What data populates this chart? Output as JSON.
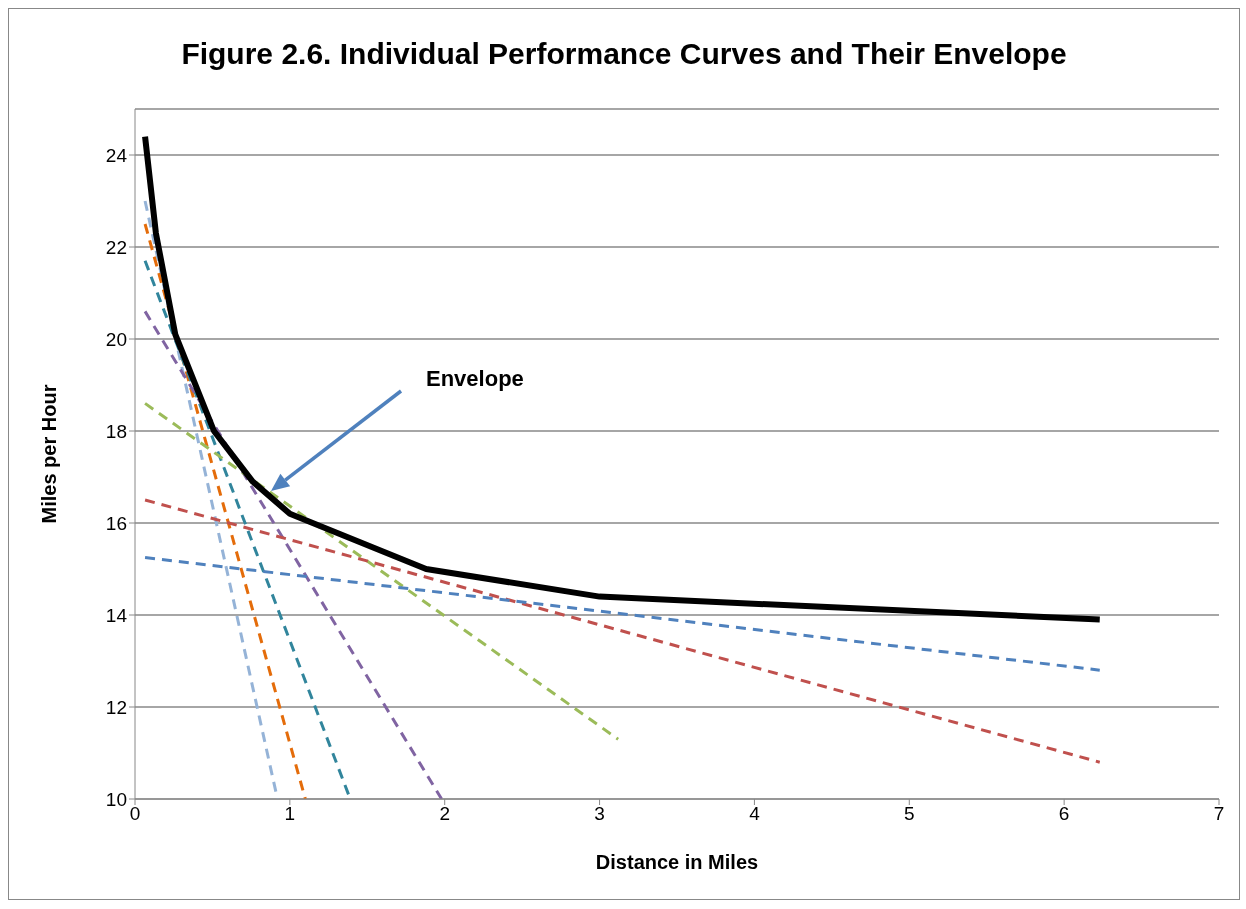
{
  "chart_data": {
    "type": "line",
    "title": "Figure 2.6. Individual Performance Curves and Their Envelope",
    "xlabel": "Distance in Miles",
    "ylabel": "Miles per Hour",
    "xlim": [
      0,
      7
    ],
    "xticks": [
      0,
      1,
      2,
      3,
      4,
      5,
      6,
      7
    ],
    "ylim": [
      10,
      25
    ],
    "yticks": [
      10,
      12,
      14,
      16,
      18,
      20,
      22,
      24
    ],
    "grid": "y",
    "marker": "none",
    "series": [
      {
        "color": "#95b3d7",
        "line_style": "dashed",
        "x": [
          0.065,
          0.92
        ],
        "values": [
          23.0,
          10
        ]
      },
      {
        "color": "#e46c0a",
        "line_style": "dashed",
        "x": [
          0.065,
          1.1
        ],
        "values": [
          22.5,
          10
        ]
      },
      {
        "color": "#31859c",
        "line_style": "dashed",
        "x": [
          0.065,
          1.39
        ],
        "values": [
          21.7,
          10
        ]
      },
      {
        "color": "#8064a2",
        "line_style": "dashed",
        "x": [
          0.065,
          1.98
        ],
        "values": [
          20.6,
          10
        ]
      },
      {
        "color": "#9bbb59",
        "line_style": "dashed",
        "x": [
          0.065,
          3.12
        ],
        "values": [
          18.6,
          11.3
        ]
      },
      {
        "color": "#c0504d",
        "line_style": "dashed",
        "x": [
          0.065,
          6.23
        ],
        "values": [
          16.5,
          10.8
        ]
      },
      {
        "color": "#4f81bd",
        "line_style": "dashed",
        "x": [
          0.065,
          6.23
        ],
        "values": [
          15.25,
          12.8
        ]
      },
      {
        "color": "#000000",
        "line_style": "solid",
        "x": [
          0.065,
          0.135,
          0.26,
          0.51,
          0.76,
          1.0,
          1.88,
          3.0,
          6.23
        ],
        "values": [
          24.4,
          22.3,
          20.1,
          18.0,
          16.9,
          16.2,
          15.0,
          14.4,
          13.9
        ]
      }
    ],
    "annotations": [
      "Envelope"
    ]
  }
}
